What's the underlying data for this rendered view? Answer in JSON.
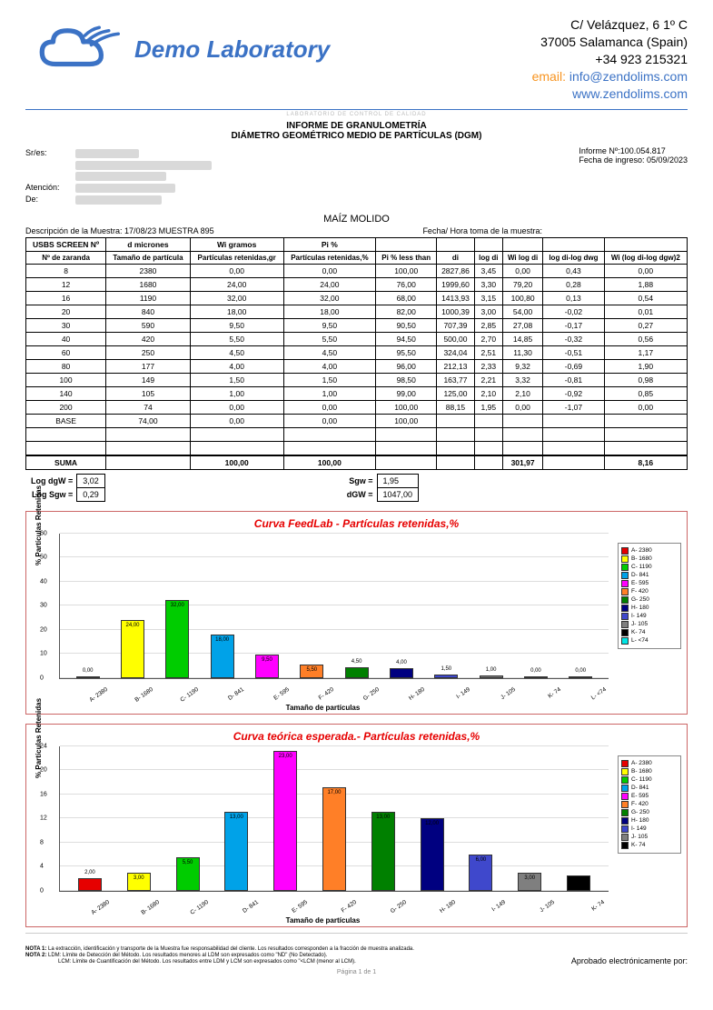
{
  "header": {
    "lab_name": "Demo Laboratory",
    "address_line1": "C/ Velázquez, 6 1º C",
    "address_line2": "37005 Salamanca (Spain)",
    "phone": "+34 923 215321",
    "email_label": "email: ",
    "email": "info@zendolims.com",
    "web": "www.zendolims.com"
  },
  "tiny_label": "LABORATORIO DE CONTROL DE CALIDAD",
  "title": "INFORME DE GRANULOMETRÍA",
  "subtitle": "DIÁMETRO GEOMÉTRICO MEDIO DE PARTÍCULAS (DGM)",
  "meta": {
    "sres_label": "Sr/es:",
    "atencion_label": "Atención:",
    "de_label": "De:",
    "informe_no_label": "Informe Nº:",
    "informe_no": "100.054.817",
    "fecha_ingreso_label": "Fecha de ingreso: ",
    "fecha_ingreso": "05/09/2023"
  },
  "sample_name": "MAÍZ MOLIDO",
  "desc_label": "Descripción de la Muestra: ",
  "desc_value": "17/08/23 MUESTRA 895",
  "fecha_toma_label": "Fecha/ Hora toma de la muestra:",
  "table": {
    "top_headers": [
      "USBS SCREEN Nº",
      "d micrones",
      "Wi gramos",
      "Pi %",
      "",
      "",
      "",
      "",
      "",
      ""
    ],
    "sub_headers": [
      "Nº de zaranda",
      "Tamaño de partícula",
      "Partículas retenidas,gr",
      "Partículas retenidas,%",
      "Pi % less than",
      "di",
      "log di",
      "Wi log di",
      "log di-log dwg",
      "Wi (log di-log dgw)2"
    ],
    "rows": [
      [
        "8",
        "2380",
        "0,00",
        "0,00",
        "100,00",
        "2827,86",
        "3,45",
        "0,00",
        "0,43",
        "0,00"
      ],
      [
        "12",
        "1680",
        "24,00",
        "24,00",
        "76,00",
        "1999,60",
        "3,30",
        "79,20",
        "0,28",
        "1,88"
      ],
      [
        "16",
        "1190",
        "32,00",
        "32,00",
        "68,00",
        "1413,93",
        "3,15",
        "100,80",
        "0,13",
        "0,54"
      ],
      [
        "20",
        "840",
        "18,00",
        "18,00",
        "82,00",
        "1000,39",
        "3,00",
        "54,00",
        "-0,02",
        "0,01"
      ],
      [
        "30",
        "590",
        "9,50",
        "9,50",
        "90,50",
        "707,39",
        "2,85",
        "27,08",
        "-0,17",
        "0,27"
      ],
      [
        "40",
        "420",
        "5,50",
        "5,50",
        "94,50",
        "500,00",
        "2,70",
        "14,85",
        "-0,32",
        "0,56"
      ],
      [
        "60",
        "250",
        "4,50",
        "4,50",
        "95,50",
        "324,04",
        "2,51",
        "11,30",
        "-0,51",
        "1,17"
      ],
      [
        "80",
        "177",
        "4,00",
        "4,00",
        "96,00",
        "212,13",
        "2,33",
        "9,32",
        "-0,69",
        "1,90"
      ],
      [
        "100",
        "149",
        "1,50",
        "1,50",
        "98,50",
        "163,77",
        "2,21",
        "3,32",
        "-0,81",
        "0,98"
      ],
      [
        "140",
        "105",
        "1,00",
        "1,00",
        "99,00",
        "125,00",
        "2,10",
        "2,10",
        "-0,92",
        "0,85"
      ],
      [
        "200",
        "74",
        "0,00",
        "0,00",
        "100,00",
        "88,15",
        "1,95",
        "0,00",
        "-1,07",
        "0,00"
      ],
      [
        "BASE",
        "74,00",
        "0,00",
        "0,00",
        "100,00",
        "",
        "",
        "",
        "",
        ""
      ]
    ],
    "empty_rows": 2,
    "suma_label": "SUMA",
    "suma": [
      "",
      "",
      "100,00",
      "100,00",
      "",
      "",
      "",
      "301,97",
      "",
      "8,16"
    ]
  },
  "summary": {
    "log_dgw_label": "Log dgW =",
    "log_dgw": "3,02",
    "log_sgw_label": "Log Sgw =",
    "log_sgw": "0,29",
    "sgw_label": "Sgw =",
    "sgw": "1,95",
    "dgw_label": "dGW =",
    "dgw": "1047,00"
  },
  "chart1": {
    "title": "Curva FeedLab - Partículas retenidas,%",
    "ylabel": "% Partículas Retenidas",
    "xlabel": "Tamaño de partículas",
    "ymax": 60,
    "ytick_step": 10,
    "categories": [
      "A- 2380",
      "B- 1680",
      "C- 1190",
      "D- 841",
      "E- 595",
      "F- 420",
      "G- 250",
      "H- 180",
      "I- 149",
      "J- 105",
      "K- 74",
      "L- <74"
    ],
    "values": [
      0.0,
      24.0,
      32.0,
      18.0,
      9.5,
      5.5,
      4.5,
      4.0,
      1.5,
      1.0,
      0.0,
      0.0
    ],
    "value_labels": [
      "0,00",
      "24,00",
      "32,00",
      "18,00",
      "9,50",
      "5,50",
      "4,50",
      "4,00",
      "1,50",
      "1,00",
      "0,00",
      "0,00"
    ],
    "colors": [
      "#e60000",
      "#ffff00",
      "#00cc00",
      "#00a2e8",
      "#ff00ff",
      "#ff7f27",
      "#008000",
      "#000080",
      "#3f48cc",
      "#7f7f7f",
      "#000000",
      "#00e5e5"
    ],
    "legend": [
      "A- 2380",
      "B- 1680",
      "C- 1190",
      "D- 841",
      "E- 595",
      "F- 420",
      "G- 250",
      "H- 180",
      "I- 149",
      "J- 105",
      "K- 74",
      "L- <74"
    ]
  },
  "chart2": {
    "title": "Curva teórica esperada.- Partículas retenidas,%",
    "ylabel": "% Partículas Retenidas",
    "xlabel": "Tamaño de partículas",
    "ymax": 24,
    "ytick_step": 4,
    "categories": [
      "A- 2380",
      "B- 1680",
      "C- 1190",
      "D- 841",
      "E- 595",
      "F- 420",
      "G- 250",
      "H- 180",
      "I- 149",
      "J- 105",
      "K- 74"
    ],
    "values": [
      2.0,
      3.0,
      5.5,
      13.0,
      23.0,
      17.0,
      13.0,
      12.0,
      6.0,
      3.0,
      2.5
    ],
    "value_labels": [
      "2,00",
      "3,00",
      "5,50",
      "13,00",
      "23,00",
      "17,00",
      "13,00",
      "12,00",
      "6,00",
      "3,00",
      "2,50"
    ],
    "colors": [
      "#e60000",
      "#ffff00",
      "#00cc00",
      "#00a2e8",
      "#ff00ff",
      "#ff7f27",
      "#008000",
      "#000080",
      "#3f48cc",
      "#7f7f7f",
      "#000000"
    ],
    "legend": [
      "A- 2380",
      "B- 1680",
      "C- 1190",
      "D- 841",
      "E- 595",
      "F- 420",
      "G- 250",
      "H- 180",
      "I- 149",
      "J- 105",
      "K- 74"
    ]
  },
  "footnotes": {
    "nota1_label": "NOTA 1:",
    "nota1": "La extracción, identificación y transporte de la Muestra fue responsabilidad del cliente. Los resultados corresponden a la fracción de muestra analizada.",
    "nota2_label": "NOTA 2:",
    "nota2a": "LDM: Límite de Detección del Método. Los resultados menores al LDM son expresados como \"ND\" (No Detectado).",
    "nota2b": "LCM: Límite de Cuantificación del Método. Los resultados entre LDM y LCM son expresados como \"<LCM (menor al LCM).",
    "sign_label": "Aprobado electrónicamente por:"
  },
  "page_no": "Página 1 de 1"
}
